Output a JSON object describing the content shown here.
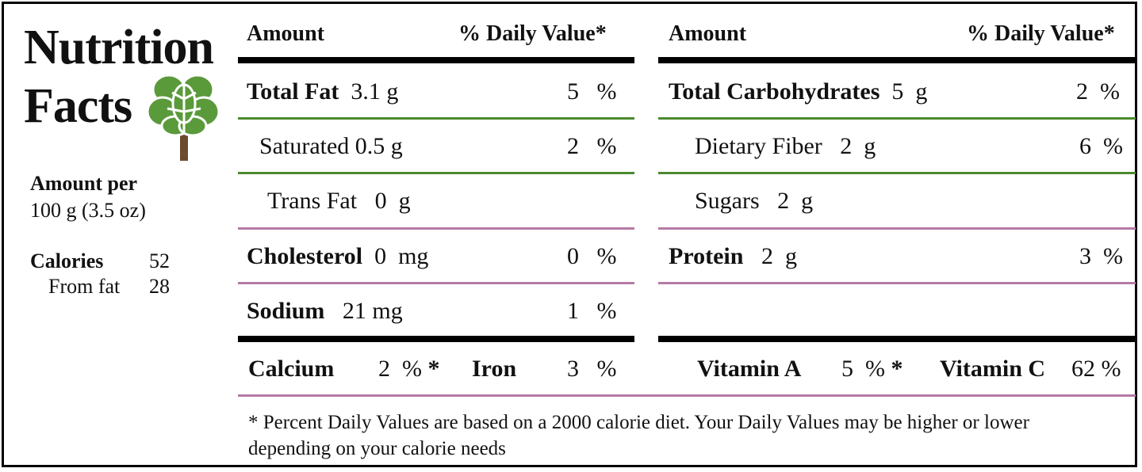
{
  "title": {
    "line1": "Nutrition",
    "line2": "Facts"
  },
  "serving": {
    "label": "Amount per",
    "size": "100 g (3.5 oz)"
  },
  "calories": {
    "label": "Calories",
    "value": "52",
    "fat_label": "From fat",
    "fat_value": "28"
  },
  "headers": {
    "amount": "Amount",
    "dv": "% Daily Value*"
  },
  "left_rows": [
    {
      "name": "Total Fat",
      "amount": "3.1",
      "unit": "g",
      "dv": "5",
      "pct": "%"
    },
    {
      "name": "Saturated",
      "amount": "0.5",
      "unit": "g",
      "dv": "2",
      "pct": "%"
    },
    {
      "name": "Trans Fat",
      "amount": "0",
      "unit": "g"
    },
    {
      "name": "Cholesterol",
      "amount": "0",
      "unit": "mg",
      "dv": "0",
      "pct": "%"
    },
    {
      "name": "Sodium",
      "amount": "21",
      "unit": "mg",
      "dv": "1",
      "pct": "%"
    }
  ],
  "right_rows": [
    {
      "name": "Total Carbohydrates",
      "amount": "5",
      "unit": "g",
      "dv": "2",
      "pct": "%"
    },
    {
      "name": "Dietary Fiber",
      "amount": "2",
      "unit": "g",
      "dv": "6",
      "pct": "%"
    },
    {
      "name": "Sugars",
      "amount": "2",
      "unit": "g"
    },
    {
      "name": "Protein",
      "amount": "2",
      "unit": "g",
      "dv": "3",
      "pct": "%"
    }
  ],
  "minerals": {
    "calcium": {
      "label": "Calcium",
      "value": "2",
      "pct": "%"
    },
    "iron": {
      "label": "Iron",
      "value": "3",
      "pct": "%"
    },
    "vitamin_a": {
      "label": "Vitamin A",
      "value": "5",
      "pct": "%"
    },
    "vitamin_c": {
      "label": "Vitamin C",
      "value": "62",
      "pct": "%"
    },
    "star": "*"
  },
  "footnote": "* Percent Daily Values are based on a 2000 calorie diet. Your Daily Values may be higher or lower depending on your calorie needs",
  "icon": "brain-tree-icon",
  "colors": {
    "border": "#000000",
    "green_rule": "#4a8a2e",
    "pink_rule": "#b57aa5",
    "tree_green": "#5a9a3a",
    "trunk": "#6b4a2e"
  }
}
